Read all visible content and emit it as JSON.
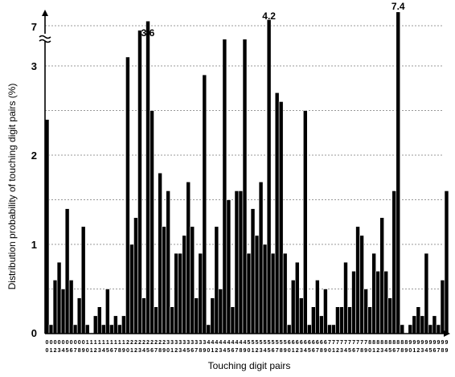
{
  "chart_data": {
    "type": "bar",
    "title": "",
    "xlabel": "Touching digit pairs",
    "ylabel": "Distribution probability of touching digit pairs (%)",
    "ylim": [
      0,
      3.5
    ],
    "y_ticks": [
      "0",
      "1",
      "2",
      "3",
      "7"
    ],
    "axis_break": true,
    "grid": "horizontal dashed",
    "categories": [
      "00",
      "01",
      "02",
      "03",
      "04",
      "05",
      "06",
      "07",
      "08",
      "09",
      "10",
      "11",
      "12",
      "13",
      "14",
      "15",
      "16",
      "17",
      "18",
      "19",
      "20",
      "21",
      "22",
      "23",
      "24",
      "25",
      "26",
      "27",
      "28",
      "29",
      "30",
      "31",
      "32",
      "33",
      "34",
      "35",
      "36",
      "37",
      "38",
      "39",
      "40",
      "41",
      "42",
      "43",
      "44",
      "45",
      "46",
      "47",
      "48",
      "49",
      "50",
      "51",
      "52",
      "53",
      "54",
      "55",
      "56",
      "57",
      "58",
      "59",
      "60",
      "61",
      "62",
      "63",
      "64",
      "65",
      "66",
      "67",
      "68",
      "69",
      "70",
      "71",
      "72",
      "73",
      "74",
      "75",
      "76",
      "77",
      "78",
      "79",
      "80",
      "81",
      "82",
      "83",
      "84",
      "85",
      "86",
      "87",
      "88",
      "89",
      "90",
      "91",
      "92",
      "93",
      "94",
      "95",
      "96",
      "97",
      "98",
      "99"
    ],
    "values": [
      2.4,
      0.1,
      0.6,
      0.8,
      0.5,
      1.4,
      0.6,
      0.1,
      0.4,
      1.2,
      0.1,
      0.0,
      0.2,
      0.3,
      0.1,
      0.5,
      0.1,
      0.2,
      0.1,
      0.2,
      3.1,
      1.0,
      1.3,
      3.4,
      0.4,
      3.6,
      2.5,
      0.3,
      1.8,
      1.2,
      1.6,
      0.3,
      0.9,
      0.9,
      1.1,
      1.7,
      1.2,
      0.4,
      0.9,
      2.9,
      0.1,
      0.4,
      1.2,
      0.5,
      3.3,
      1.5,
      0.3,
      1.6,
      1.6,
      3.3,
      0.9,
      1.4,
      1.1,
      1.7,
      1.0,
      4.2,
      0.9,
      2.7,
      2.6,
      0.9,
      0.1,
      0.6,
      0.8,
      0.4,
      2.5,
      0.1,
      0.3,
      0.6,
      0.2,
      0.5,
      0.1,
      0.1,
      0.3,
      0.3,
      0.8,
      0.3,
      0.7,
      1.2,
      1.1,
      0.5,
      0.3,
      0.9,
      0.7,
      1.3,
      0.7,
      0.4,
      1.6,
      7.4,
      0.1,
      0.0,
      0.1,
      0.2,
      0.3,
      0.2,
      0.9,
      0.1,
      0.2,
      0.1,
      0.6,
      1.6
    ],
    "annotations": [
      {
        "category": "25",
        "label": "3.6"
      },
      {
        "category": "55",
        "label": "4.2"
      },
      {
        "category": "87",
        "label": "7.4"
      }
    ]
  }
}
